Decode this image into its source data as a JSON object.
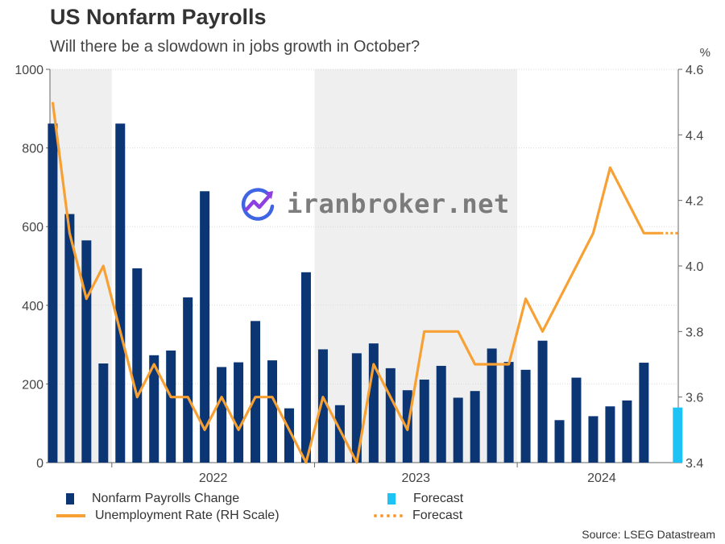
{
  "title": "US Nonfarm Payrolls",
  "subtitle": "Will there be a slowdown in jobs growth in October?",
  "source": "Source: LSEG Datastream",
  "watermark": {
    "text": "iranbroker.net",
    "icon": "trend-chart-logo-icon"
  },
  "legend": [
    {
      "label": "Nonfarm Payrolls Change",
      "kind": "bar",
      "color": "#0b3673"
    },
    {
      "label": "Forecast",
      "kind": "bar",
      "color": "#1ec3f5"
    },
    {
      "label": "Unemployment Rate (RH Scale)",
      "kind": "line",
      "color": "#f7a033"
    },
    {
      "label": "Forecast",
      "kind": "dotted-line",
      "color": "#f7a033"
    }
  ],
  "chart_data": {
    "type": "bar",
    "months": [
      "2021-09",
      "2021-10",
      "2021-11",
      "2021-12",
      "2022-01",
      "2022-02",
      "2022-03",
      "2022-04",
      "2022-05",
      "2022-06",
      "2022-07",
      "2022-08",
      "2022-09",
      "2022-10",
      "2022-11",
      "2022-12",
      "2023-01",
      "2023-02",
      "2023-03",
      "2023-04",
      "2023-05",
      "2023-06",
      "2023-07",
      "2023-08",
      "2023-09",
      "2023-10",
      "2023-11",
      "2023-12",
      "2024-01",
      "2024-02",
      "2024-03",
      "2024-04",
      "2024-05",
      "2024-06",
      "2024-07",
      "2024-08",
      "2024-09",
      "2024-10"
    ],
    "x_ticks": [
      "2022",
      "2023",
      "2024"
    ],
    "series": [
      {
        "name": "Nonfarm Payrolls Change",
        "axis": "left",
        "color": "#0b3673",
        "values": [
          862,
          632,
          565,
          252,
          862,
          494,
          273,
          285,
          420,
          690,
          243,
          255,
          360,
          260,
          138,
          484,
          288,
          146,
          278,
          303,
          240,
          184,
          211,
          246,
          165,
          182,
          290,
          256,
          236,
          310,
          108,
          216,
          118,
          143,
          158,
          254,
          null,
          null
        ]
      },
      {
        "name": "Forecast",
        "axis": "left",
        "color": "#1ec3f5",
        "values": [
          null,
          null,
          null,
          null,
          null,
          null,
          null,
          null,
          null,
          null,
          null,
          null,
          null,
          null,
          null,
          null,
          null,
          null,
          null,
          null,
          null,
          null,
          null,
          null,
          null,
          null,
          null,
          null,
          null,
          null,
          null,
          null,
          null,
          null,
          null,
          null,
          null,
          140
        ]
      },
      {
        "name": "Unemployment Rate (RH Scale)",
        "type": "line",
        "axis": "right",
        "color": "#f7a033",
        "values": [
          4.5,
          4.1,
          3.9,
          4.0,
          3.8,
          3.6,
          3.7,
          3.6,
          3.6,
          3.5,
          3.6,
          3.5,
          3.6,
          3.6,
          3.5,
          3.4,
          3.6,
          3.5,
          3.4,
          3.7,
          3.6,
          3.5,
          3.8,
          3.8,
          3.8,
          3.7,
          3.7,
          3.7,
          3.9,
          3.8,
          3.9,
          4.0,
          4.1,
          4.3,
          4.2,
          4.1,
          4.1,
          null
        ]
      },
      {
        "name": "Forecast",
        "type": "dotted-line",
        "axis": "right",
        "color": "#f7a033",
        "values": [
          null,
          null,
          null,
          null,
          null,
          null,
          null,
          null,
          null,
          null,
          null,
          null,
          null,
          null,
          null,
          null,
          null,
          null,
          null,
          null,
          null,
          null,
          null,
          null,
          null,
          null,
          null,
          null,
          null,
          null,
          null,
          null,
          null,
          null,
          null,
          null,
          4.1,
          4.1
        ]
      }
    ],
    "y_left": {
      "ylim": [
        0,
        1000
      ],
      "ticks": [
        0,
        200,
        400,
        600,
        800,
        1000
      ]
    },
    "y_right": {
      "ylim": [
        3.4,
        4.6
      ],
      "ticks": [
        3.4,
        3.6,
        3.8,
        4.0,
        4.2,
        4.4,
        4.6
      ],
      "unit": "%"
    },
    "shaded_years": [
      "2021",
      "2023"
    ],
    "grid": true,
    "legend_position": "bottom"
  }
}
